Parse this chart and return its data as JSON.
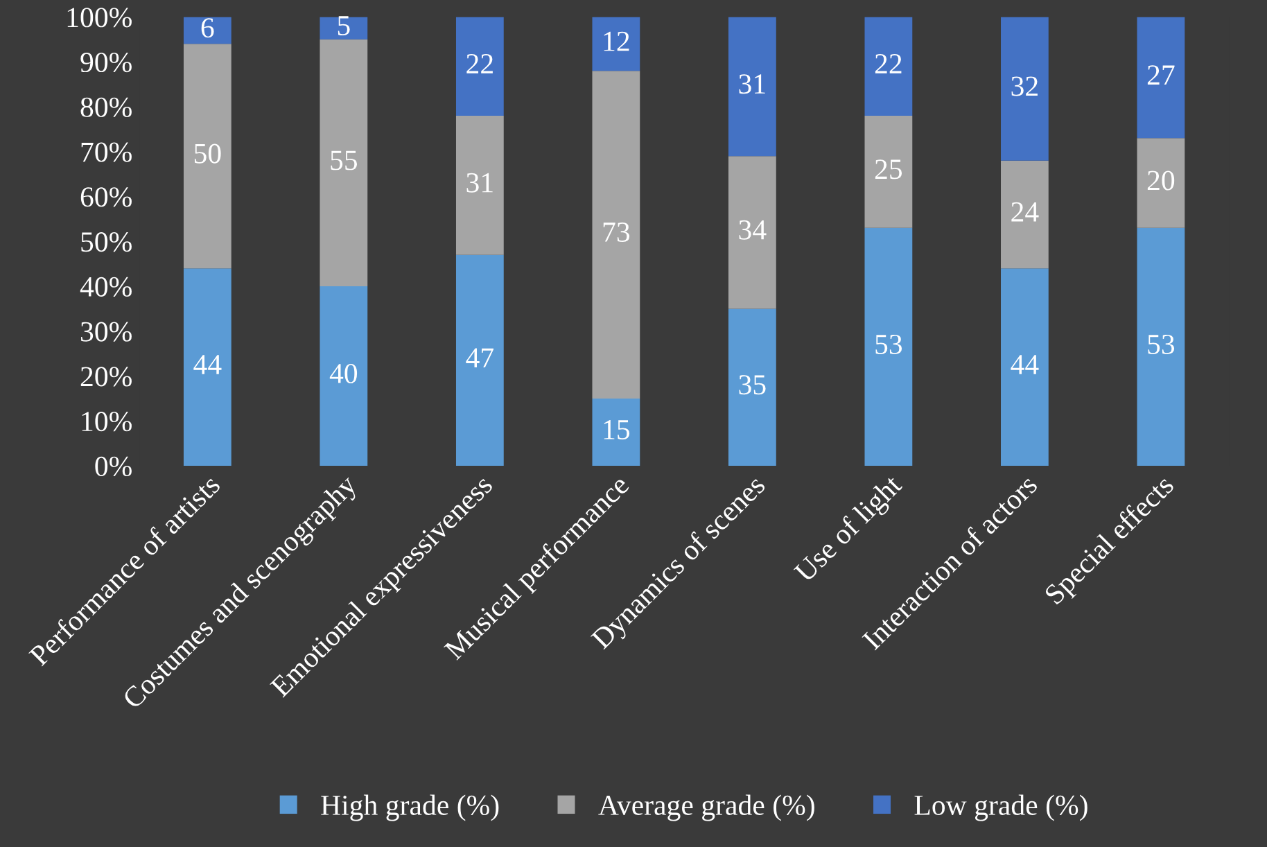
{
  "chart_data": {
    "type": "bar",
    "stacked": true,
    "categories": [
      "Performance of artists",
      "Costumes and scenography",
      "Emotional expressiveness",
      "Musical performance",
      "Dynamics of scenes",
      "Use of light",
      "Interaction of actors",
      "Special effects"
    ],
    "series": [
      {
        "name": "High grade (%)",
        "color": "#5b9bd5",
        "values": [
          44,
          40,
          47,
          15,
          35,
          53,
          44,
          53
        ]
      },
      {
        "name": "Average grade (%)",
        "color": "#a5a5a5",
        "values": [
          50,
          55,
          31,
          73,
          34,
          25,
          24,
          20
        ]
      },
      {
        "name": "Low grade (%)",
        "color": "#4472c4",
        "values": [
          6,
          5,
          22,
          12,
          31,
          22,
          32,
          27
        ]
      }
    ],
    "ylim": [
      0,
      100
    ],
    "yticks": [
      {
        "value": 0,
        "label": "0%"
      },
      {
        "value": 10,
        "label": "10%"
      },
      {
        "value": 20,
        "label": "20%"
      },
      {
        "value": 30,
        "label": "30%"
      },
      {
        "value": 40,
        "label": "40%"
      },
      {
        "value": 50,
        "label": "50%"
      },
      {
        "value": 60,
        "label": "60%"
      },
      {
        "value": 70,
        "label": "70%"
      },
      {
        "value": 80,
        "label": "80%"
      },
      {
        "value": 90,
        "label": "90%"
      },
      {
        "value": 100,
        "label": "100%"
      }
    ],
    "data_labels": true,
    "grid": false,
    "legend": "bottom"
  }
}
